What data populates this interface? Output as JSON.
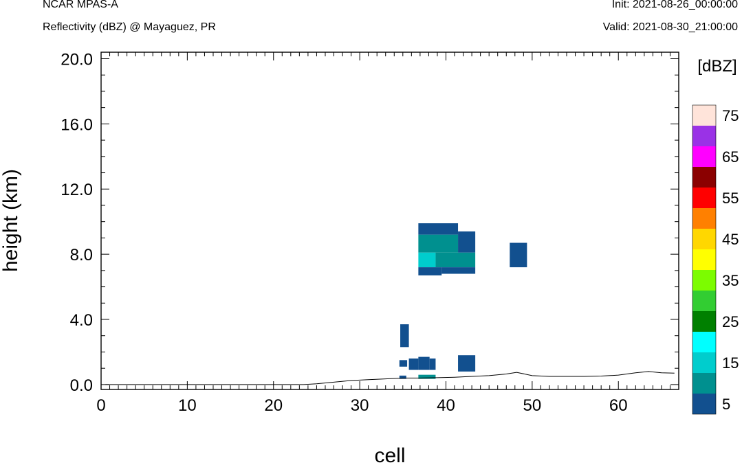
{
  "header": {
    "model": "NCAR MPAS-A",
    "subtitle": "Reflectivity (dBZ) @ Mayaguez, PR",
    "init": "Init: 2021-08-26_00:00:00",
    "valid": "Valid: 2021-08-30_21:00:00"
  },
  "chart_data": {
    "type": "heatmap",
    "xlabel": "cell",
    "ylabel": "height (km)",
    "xlim": [
      0,
      67
    ],
    "ylim": [
      -0.3,
      20.4
    ],
    "x_ticks": [
      "0",
      "10",
      "20",
      "30",
      "40",
      "50",
      "60"
    ],
    "y_ticks": [
      "0.0",
      "4.0",
      "8.0",
      "12.0",
      "16.0",
      "20.0"
    ],
    "colorbar": {
      "units": "[dBZ]",
      "levels": [
        5,
        10,
        15,
        20,
        25,
        30,
        35,
        40,
        45,
        50,
        55,
        60,
        65,
        70,
        75
      ],
      "labels": [
        "5",
        "15",
        "25",
        "35",
        "45",
        "55",
        "65",
        "75"
      ],
      "colors": [
        "#12508f",
        "#00908f",
        "#00cdcd",
        "#00ffff",
        "#008000",
        "#32cd32",
        "#7cfc00",
        "#ffff00",
        "#ffd700",
        "#ff8000",
        "#ff0000",
        "#8b0000",
        "#ff00ff",
        "#9a32e6",
        "#ffe4da"
      ]
    },
    "cells": [
      {
        "x0": 36.8,
        "x1": 41.4,
        "y0": 9.2,
        "y1": 9.9,
        "dbz": 5
      },
      {
        "x0": 41.4,
        "x1": 43.4,
        "y0": 8.1,
        "y1": 9.4,
        "dbz": 5
      },
      {
        "x0": 36.8,
        "x1": 41.4,
        "y0": 8.1,
        "y1": 9.2,
        "dbz": 10
      },
      {
        "x0": 36.8,
        "x1": 38.8,
        "y0": 7.2,
        "y1": 8.1,
        "dbz": 15
      },
      {
        "x0": 38.8,
        "x1": 43.4,
        "y0": 7.2,
        "y1": 8.1,
        "dbz": 10
      },
      {
        "x0": 36.8,
        "x1": 39.5,
        "y0": 6.7,
        "y1": 7.2,
        "dbz": 5
      },
      {
        "x0": 39.5,
        "x1": 43.4,
        "y0": 6.8,
        "y1": 7.2,
        "dbz": 5
      },
      {
        "x0": 47.4,
        "x1": 49.4,
        "y0": 7.2,
        "y1": 8.7,
        "dbz": 5
      },
      {
        "x0": 34.7,
        "x1": 35.7,
        "y0": 2.3,
        "y1": 3.7,
        "dbz": 5
      },
      {
        "x0": 34.6,
        "x1": 35.5,
        "y0": 1.1,
        "y1": 1.5,
        "dbz": 5
      },
      {
        "x0": 35.7,
        "x1": 36.8,
        "y0": 0.9,
        "y1": 1.6,
        "dbz": 5
      },
      {
        "x0": 36.8,
        "x1": 38.1,
        "y0": 0.9,
        "y1": 1.7,
        "dbz": 5
      },
      {
        "x0": 38.1,
        "x1": 38.8,
        "y0": 0.9,
        "y1": 1.6,
        "dbz": 5
      },
      {
        "x0": 41.4,
        "x1": 43.4,
        "y0": 0.8,
        "y1": 1.8,
        "dbz": 5
      },
      {
        "x0": 34.6,
        "x1": 35.4,
        "y0": 0.35,
        "y1": 0.55,
        "dbz": 5
      },
      {
        "x0": 36.8,
        "x1": 38.8,
        "y0": 0.35,
        "y1": 0.6,
        "dbz": 10
      }
    ],
    "terrain": [
      [
        0.5,
        0.0
      ],
      [
        23.5,
        0.0
      ],
      [
        25,
        0.05
      ],
      [
        27,
        0.15
      ],
      [
        29,
        0.25
      ],
      [
        31,
        0.3
      ],
      [
        33,
        0.35
      ],
      [
        35,
        0.4
      ],
      [
        37,
        0.4
      ],
      [
        39,
        0.42
      ],
      [
        41,
        0.45
      ],
      [
        43,
        0.5
      ],
      [
        45,
        0.55
      ],
      [
        47,
        0.65
      ],
      [
        48.2,
        0.75
      ],
      [
        50,
        0.55
      ],
      [
        52,
        0.5
      ],
      [
        54,
        0.5
      ],
      [
        56,
        0.5
      ],
      [
        58,
        0.52
      ],
      [
        60,
        0.58
      ],
      [
        62,
        0.72
      ],
      [
        63.5,
        0.8
      ],
      [
        65,
        0.72
      ],
      [
        66.5,
        0.7
      ]
    ]
  }
}
